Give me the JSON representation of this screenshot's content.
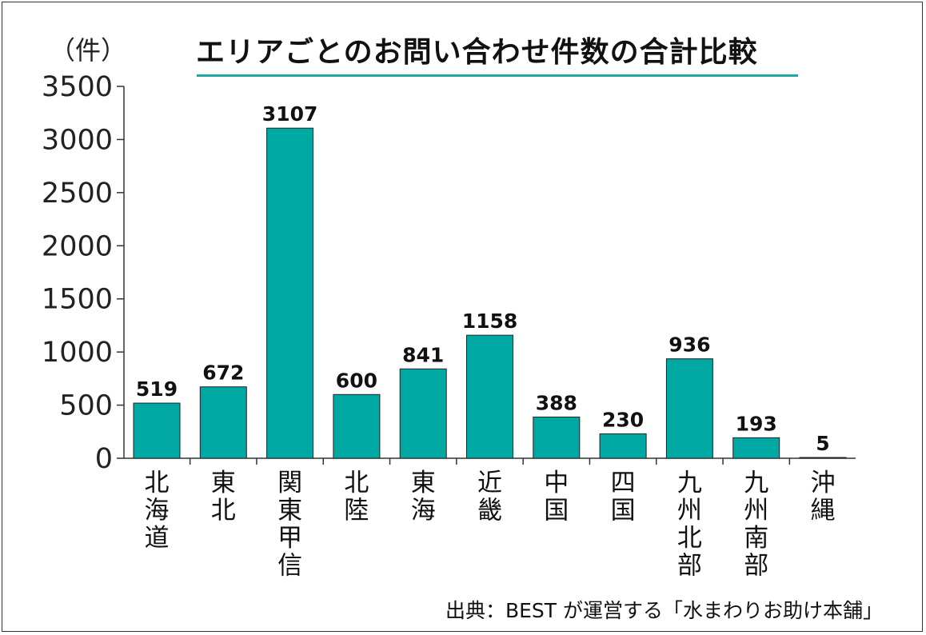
{
  "header": {
    "unit_label": "（件）",
    "title": "エリアごとのお問い合わせ件数の合計比較"
  },
  "footer": {
    "source": "出典：BEST が運営する「水まわりお助け本舗」"
  },
  "colors": {
    "bar": "#00a8a4",
    "bar_outline": "#222222",
    "title_underline": "#1fa7a0"
  },
  "chart_data": {
    "type": "bar",
    "title": "エリアごとのお問い合わせ件数の合計比較",
    "ylabel": "（件）",
    "xlabel": "",
    "categories": [
      "北海道",
      "東北",
      "関東甲信",
      "北陸",
      "東海",
      "近畿",
      "中国",
      "四国",
      "九州北部",
      "九州南部",
      "沖縄"
    ],
    "values": [
      519,
      672,
      3107,
      600,
      841,
      1158,
      388,
      230,
      936,
      193,
      5
    ],
    "ylim": [
      0,
      3500
    ],
    "yticks": [
      "0",
      "500",
      "1000",
      "1500",
      "2000",
      "2500",
      "3000",
      "3500"
    ],
    "grid": false,
    "data_labels": true
  }
}
